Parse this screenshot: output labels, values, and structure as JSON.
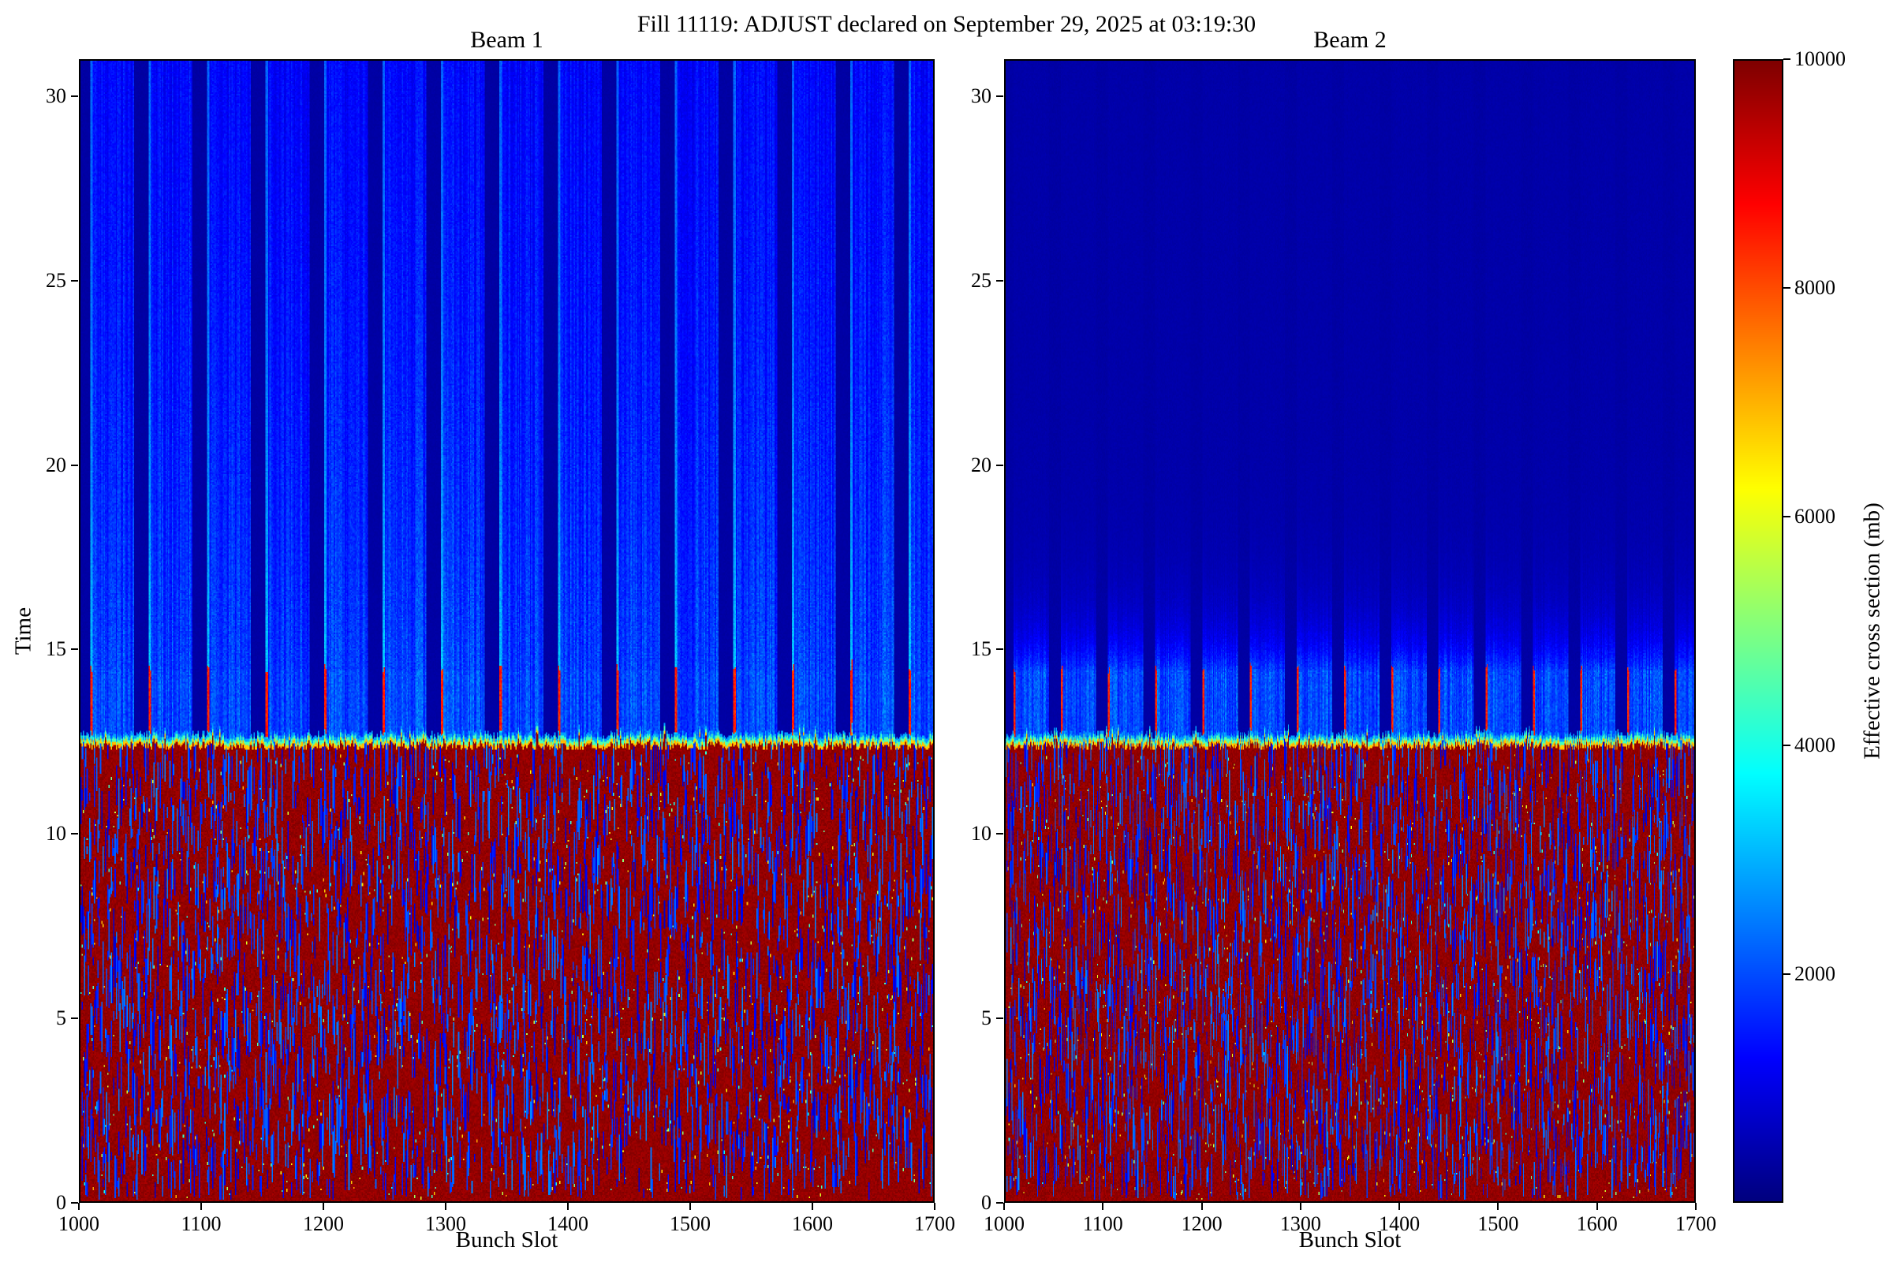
{
  "title": "Fill 11119: ADJUST declared on September 29, 2025 at 03:19:30",
  "chart_data": {
    "type": "heatmap",
    "xlabel": "Bunch Slot",
    "ylabel": "Time",
    "x_range": [
      1000,
      1700
    ],
    "y_range": [
      0,
      31
    ],
    "x_ticks": [
      1000,
      1100,
      1200,
      1300,
      1400,
      1500,
      1600,
      1700
    ],
    "y_ticks": [
      0,
      5,
      10,
      15,
      20,
      25,
      30
    ],
    "colormap": "jet",
    "colorbar": {
      "label": "Effective cross section (mb)",
      "min": 0,
      "max": 10000,
      "ticks": [
        2000,
        4000,
        6000,
        8000,
        10000
      ]
    },
    "panels": [
      {
        "title": "Beam 1",
        "seed": 11119,
        "streak_mode": "persistent"
      },
      {
        "title": "Beam 2",
        "seed": 21119,
        "streak_mode": "fading"
      }
    ],
    "pattern": {
      "boundary_time": 12.35,
      "boundary_noise": 0.12,
      "saturated_value": 10000,
      "transition_values": [
        6600,
        4300,
        2700
      ],
      "upper_base_value": 300,
      "upper_noise": 110,
      "train_first_slot": 1008,
      "train_period": 48,
      "train_length": 36,
      "block_top_time": 14.4,
      "block_value": 1600,
      "streak_value": 1500,
      "core_value": 3200,
      "core_fade": 2.0,
      "fade_slow": 18,
      "fade_fast": 1.1,
      "red_tip_value": 8800,
      "red_tip_len": 2.1,
      "dash_prob": 0.02,
      "dash_len": [
        5,
        34
      ],
      "dash_value": [
        700,
        2600
      ],
      "speckle_prob": 0.006,
      "speckle_value": [
        3800,
        7200
      ]
    }
  }
}
